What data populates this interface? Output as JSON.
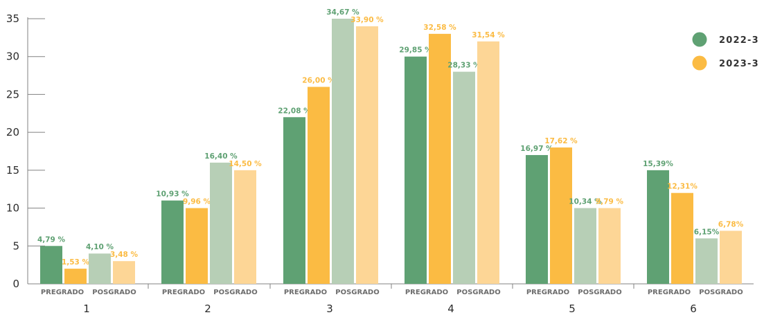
{
  "chart_data": {
    "type": "bar",
    "ylim": [
      0,
      35
    ],
    "yticks": [
      0,
      5,
      10,
      15,
      20,
      25,
      30,
      35
    ],
    "grid": false,
    "legend_position": "top-right",
    "legend": [
      {
        "name": "2022-3",
        "color": "#5fa173"
      },
      {
        "name": "2023-3",
        "color": "#fbbb43"
      }
    ],
    "subcategories": [
      "PREGRADO",
      "POSGRADO"
    ],
    "groups": [
      {
        "label": "1",
        "bars": [
          {
            "value": 5,
            "label": "4,79 %"
          },
          {
            "value": 2,
            "label": "1,53 %"
          },
          {
            "value": 4,
            "label": "4,10 %"
          },
          {
            "value": 3,
            "label": "3,48 %"
          }
        ]
      },
      {
        "label": "2",
        "bars": [
          {
            "value": 11,
            "label": "10,93 %"
          },
          {
            "value": 10,
            "label": "9,96 %"
          },
          {
            "value": 16,
            "label": "16,40 %"
          },
          {
            "value": 15,
            "label": "14,50 %"
          }
        ]
      },
      {
        "label": "3",
        "bars": [
          {
            "value": 22,
            "label": "22,08 %"
          },
          {
            "value": 26,
            "label": "26,00 %"
          },
          {
            "value": 35,
            "label": "34,67 %"
          },
          {
            "value": 34,
            "label": "33,90 %"
          }
        ]
      },
      {
        "label": "4",
        "bars": [
          {
            "value": 30,
            "label": "29,85 %"
          },
          {
            "value": 33,
            "label": "32,58 %"
          },
          {
            "value": 28,
            "label": "28,33 %"
          },
          {
            "value": 32,
            "label": "31,54 %"
          }
        ]
      },
      {
        "label": "5",
        "bars": [
          {
            "value": 17,
            "label": "16,97 %"
          },
          {
            "value": 18,
            "label": "17,62 %"
          },
          {
            "value": 10,
            "label": "10,34 %"
          },
          {
            "value": 10,
            "label": "9,79 %"
          }
        ]
      },
      {
        "label": "6",
        "bars": [
          {
            "value": 15,
            "label": "15,39%"
          },
          {
            "value": 12,
            "label": "12,31%"
          },
          {
            "value": 6,
            "label": "6,15%"
          },
          {
            "value": 7,
            "label": "6,78%"
          }
        ]
      }
    ],
    "bar_colors": [
      "#5fa173",
      "#fbbb43",
      "#b7cfb6",
      "#fdd696"
    ],
    "label_colors": [
      "#5fa173",
      "#fbbb43",
      "#5fa173",
      "#fbbb43"
    ]
  }
}
